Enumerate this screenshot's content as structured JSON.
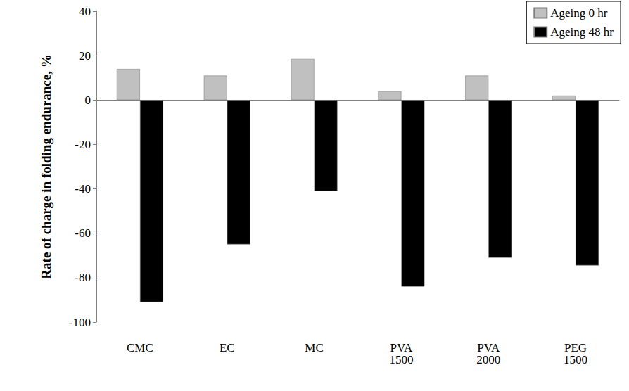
{
  "chart_data": {
    "type": "bar",
    "y_label": "Rate of charge in folding endurance, %",
    "categories": [
      "CMC",
      "EC",
      "MC",
      "PVA 1500",
      "PVA 2000",
      "PEG 1500"
    ],
    "series": [
      {
        "name": "Ageing 0 hr",
        "color": "#c0c0c0",
        "values": [
          14,
          11,
          18.5,
          4,
          11,
          2
        ]
      },
      {
        "name": "Ageing 48 hr",
        "color": "#000000",
        "values": [
          -91,
          -65,
          -41,
          -84,
          -71,
          -74.5
        ]
      }
    ],
    "ylim": [
      -100,
      40
    ],
    "yticks": [
      -100,
      -80,
      -60,
      -40,
      -20,
      0,
      20,
      40
    ],
    "grid": false,
    "legend": "upper right",
    "data_labels": false
  }
}
